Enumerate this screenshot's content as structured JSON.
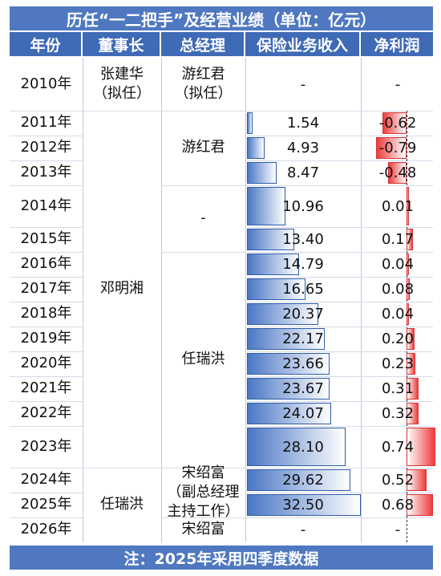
{
  "title": "历任“一二把手”及经营业绩（单位：亿元）",
  "headers": [
    "年份",
    "董事长",
    "总经理",
    "保险业务收入",
    "净利润"
  ],
  "footer": "注：2025年采用四季度数据",
  "chairmen": [
    {
      "name": "张建华\n（拟任）",
      "from": 0,
      "to": 0
    },
    {
      "name": "邓明湘",
      "from": 1,
      "to": 13
    },
    {
      "name": "任瑞洪",
      "from": 14,
      "to": 16
    }
  ],
  "managers": [
    {
      "name": "游红君\n（拟任）",
      "from": 0,
      "to": 0
    },
    {
      "name": "游红君",
      "from": 1,
      "to": 3
    },
    {
      "name": "-",
      "from": 4,
      "to": 5
    },
    {
      "name": "任瑞洪",
      "from": 6,
      "to": 13
    },
    {
      "name": "宋绍富\n（副总经理\n主持工作）",
      "from": 14,
      "to": 15
    },
    {
      "name": "宋绍富",
      "from": 16,
      "to": 16
    }
  ],
  "chart_data": {
    "type": "table",
    "years": [
      "2010年",
      "2011年",
      "2012年",
      "2013年",
      "2014年",
      "2015年",
      "2016年",
      "2017年",
      "2018年",
      "2019年",
      "2020年",
      "2021年",
      "2022年",
      "2023年",
      "2024年",
      "2025年",
      "2026年"
    ],
    "revenue": [
      null,
      1.54,
      4.93,
      8.47,
      10.96,
      13.4,
      14.79,
      16.65,
      20.37,
      22.17,
      23.66,
      23.67,
      24.07,
      28.1,
      29.62,
      32.5,
      null
    ],
    "revenue_labels": [
      "-",
      "1.54",
      "4.93",
      "8.47",
      "10.96",
      "13.40",
      "14.79",
      "16.65",
      "20.37",
      "22.17",
      "23.66",
      "23.67",
      "24.07",
      "28.10",
      "29.62",
      "32.50",
      "-"
    ],
    "net_profit": [
      null,
      -0.62,
      -0.79,
      -0.48,
      0.01,
      0.17,
      0.04,
      0.08,
      0.04,
      0.2,
      0.23,
      0.31,
      0.32,
      0.74,
      0.52,
      0.68,
      null
    ],
    "net_profit_labels": [
      "-",
      "-0.62",
      "-0.79",
      "-0.48",
      "0.01",
      "0.17",
      "0.04",
      "0.08",
      "0.04",
      "0.20",
      "0.23",
      "0.31",
      "0.32",
      "0.74",
      "0.52",
      "0.68",
      "-"
    ],
    "colors": {
      "header": "#3f6ab6",
      "revenue_bar": "#4a77c4",
      "profit_bar": "#ee3c3c"
    }
  }
}
